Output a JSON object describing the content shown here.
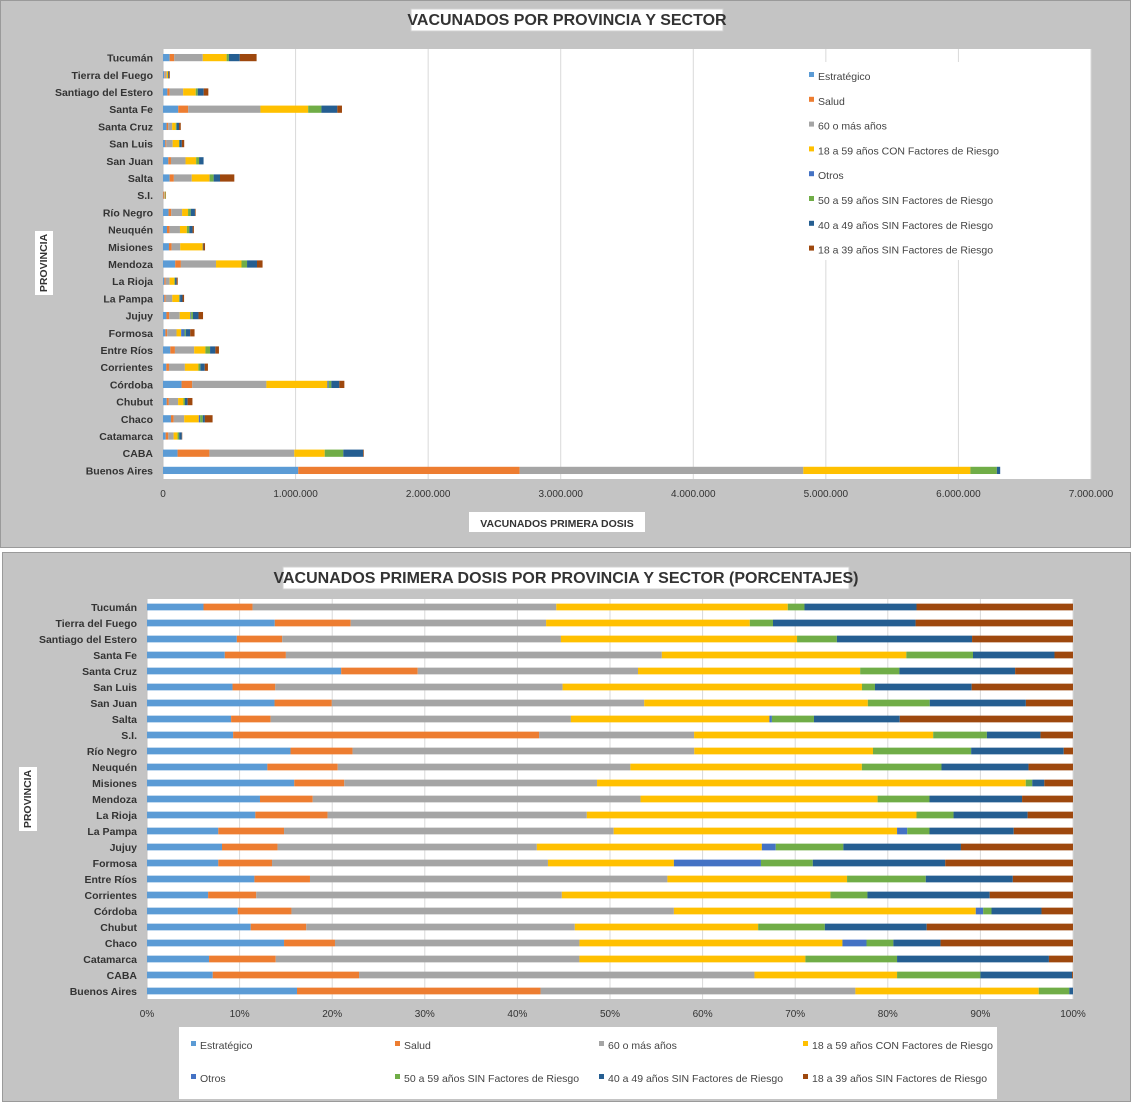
{
  "chart_data": [
    {
      "type": "bar",
      "orientation": "horizontal",
      "stacked": true,
      "title": "VACUNADOS POR PROVINCIA Y SECTOR",
      "xlabel": "VACUNADOS PRIMERA  DOSIS",
      "ylabel": "PROVINCIA",
      "xlim": [
        0,
        7000000
      ],
      "xticks": [
        "0",
        "1.000.000",
        "2.000.000",
        "3.000.000",
        "4.000.000",
        "5.000.000",
        "6.000.000",
        "7.000.000"
      ],
      "grid": true,
      "legend_position": "top-right",
      "categories": [
        "Buenos Aires",
        "CABA",
        "Catamarca",
        "Chaco",
        "Chubut",
        "Córdoba",
        "Corrientes",
        "Entre Ríos",
        "Formosa",
        "Jujuy",
        "La Pampa",
        "La Rioja",
        "Mendoza",
        "Misiones",
        "Neuquén",
        "Río Negro",
        "S.I.",
        "Salta",
        "San Juan",
        "San Luis",
        "Santa Cruz",
        "Santa Fe",
        "Santiago del Estero",
        "Tierra del Fuego",
        "Tucumán"
      ],
      "series": [
        {
          "name": "Estratégico",
          "values": [
            1020000,
            110000,
            20000,
            60000,
            28000,
            140000,
            25000,
            55000,
            18000,
            26000,
            10000,
            10000,
            92000,
            45000,
            30000,
            42000,
            2000,
            50000,
            40000,
            17000,
            27000,
            115000,
            33000,
            9000,
            50000
          ]
        },
        {
          "name": "Salud",
          "values": [
            1670000,
            240000,
            20000,
            20000,
            16000,
            80000,
            20000,
            35000,
            14000,
            20000,
            10000,
            10000,
            43000,
            20000,
            20000,
            20000,
            6000,
            32000,
            20000,
            8000,
            12000,
            75000,
            17000,
            5000,
            35000
          ]
        },
        {
          "name": "60 o más años",
          "values": [
            2140000,
            640000,
            40000,
            80000,
            70000,
            560000,
            120000,
            145000,
            70000,
            80000,
            50000,
            30000,
            265000,
            65000,
            78000,
            82000,
            5000,
            135000,
            110000,
            48000,
            30000,
            545000,
            102000,
            14000,
            215000
          ]
        },
        {
          "name": "18 a 59 años CON Factores de Riesgo",
          "values": [
            1260000,
            230000,
            30000,
            110000,
            40000,
            460000,
            102000,
            85000,
            35000,
            80000,
            52000,
            36000,
            192000,
            170000,
            52000,
            45000,
            5000,
            135000,
            80000,
            48000,
            27000,
            360000,
            95000,
            10000,
            180000
          ]
        },
        {
          "name": "Otros",
          "values": [
            0,
            0,
            0,
            10000,
            0,
            10000,
            0,
            0,
            25000,
            6000,
            2000,
            0,
            0,
            0,
            0,
            0,
            0,
            2000,
            0,
            0,
            0,
            0,
            0,
            0,
            0
          ]
        },
        {
          "name": "50 a 59 años SIN Factores de Riesgo",
          "values": [
            200000,
            140000,
            12000,
            20000,
            12000,
            20000,
            15000,
            35000,
            10000,
            14000,
            5000,
            5000,
            42000,
            0,
            18000,
            20000,
            1000,
            28000,
            22000,
            4000,
            7000,
            100000,
            15000,
            1000,
            17000
          ]
        },
        {
          "name": "40 a 49 años SIN Factores de Riesgo",
          "values": [
            25000,
            150000,
            20000,
            16000,
            20000,
            60000,
            33000,
            40000,
            33000,
            42000,
            18000,
            12000,
            75000,
            5000,
            25000,
            32000,
            1000,
            48000,
            34000,
            17000,
            18000,
            120000,
            45000,
            6000,
            82000
          ]
        },
        {
          "name": "18 a 39 años SIN Factores de Riesgo",
          "values": [
            0,
            5000,
            3000,
            58000,
            36000,
            38000,
            24000,
            27000,
            33000,
            34000,
            12000,
            8000,
            42000,
            12000,
            10000,
            5000,
            1000,
            108000,
            0,
            18000,
            13000,
            35000,
            35000,
            6000,
            127000
          ]
        }
      ]
    },
    {
      "type": "bar",
      "orientation": "horizontal",
      "stacked": true,
      "normalized": true,
      "title": "VACUNADOS PRIMERA DOSIS POR PROVINCIA Y SECTOR (PORCENTAJES)",
      "xlabel": "",
      "ylabel": "PROVINCIA",
      "xlim": [
        0,
        100
      ],
      "xticks": [
        "0%",
        "10%",
        "20%",
        "30%",
        "40%",
        "50%",
        "60%",
        "70%",
        "80%",
        "90%",
        "100%"
      ],
      "grid": true,
      "legend_position": "bottom",
      "categories": [
        "Buenos Aires",
        "CABA",
        "Catamarca",
        "Chaco",
        "Chubut",
        "Córdoba",
        "Corrientes",
        "Entre Ríos",
        "Formosa",
        "Jujuy",
        "La Pampa",
        "La Rioja",
        "Mendoza",
        "Misiones",
        "Neuquén",
        "Río Negro",
        "S.I.",
        "Salta",
        "San Juan",
        "San Luis",
        "Santa Cruz",
        "Santa Fe",
        "Santiago del Estero",
        "Tierra del Fuego",
        "Tucumán"
      ],
      "series": [
        {
          "name": "Estratégico",
          "values": [
            16.2,
            7.1,
            6.7,
            14.8,
            11.2,
            9.8,
            6.6,
            11.6,
            7.7,
            8.1,
            7.7,
            11.7,
            12.2,
            15.9,
            13.0,
            15.5,
            8.5,
            10.0,
            13.8,
            9.2,
            20.8,
            8.4,
            9.7,
            13.8,
            6.1
          ]
        },
        {
          "name": "Salud",
          "values": [
            26.3,
            15.8,
            7.2,
            5.5,
            6.0,
            5.8,
            5.2,
            6.0,
            5.8,
            6.0,
            7.1,
            7.8,
            5.7,
            5.4,
            7.6,
            6.7,
            30.2,
            4.7,
            6.2,
            4.6,
            8.2,
            6.6,
            4.9,
            8.2,
            5.3
          ]
        },
        {
          "name": "60 o más años",
          "values": [
            34.0,
            42.7,
            32.8,
            26.4,
            29.0,
            41.3,
            33.0,
            38.6,
            29.8,
            28.0,
            35.6,
            28.0,
            35.4,
            27.3,
            31.6,
            36.9,
            15.3,
            35.7,
            33.8,
            30.9,
            23.6,
            40.6,
            30.1,
            21.1,
            32.8
          ]
        },
        {
          "name": "18 a 59 años CON Factores de Riesgo",
          "values": [
            19.8,
            15.4,
            24.4,
            28.4,
            19.8,
            32.6,
            29.0,
            19.4,
            13.6,
            24.3,
            30.6,
            35.6,
            25.6,
            46.3,
            25.0,
            19.3,
            23.6,
            23.6,
            24.2,
            32.2,
            23.8,
            26.4,
            25.5,
            22.0,
            25.0
          ]
        },
        {
          "name": "Otros",
          "values": [
            0,
            0,
            0,
            2.6,
            0,
            0.8,
            0,
            0,
            9.4,
            1.5,
            1.1,
            0,
            0,
            0,
            0,
            0,
            0,
            0.3,
            0,
            0,
            0,
            0,
            0,
            0,
            0
          ]
        },
        {
          "name": "50 a 59 años SIN Factores de Riesgo",
          "values": [
            3.3,
            9.0,
            9.9,
            2.9,
            7.2,
            0.9,
            4.0,
            8.5,
            5.6,
            7.3,
            2.4,
            4.0,
            5.6,
            0.7,
            8.6,
            10.6,
            5.3,
            5.0,
            6.7,
            1.4,
            4.2,
            7.2,
            4.3,
            2.5,
            1.8
          ]
        },
        {
          "name": "40 a 49 años SIN Factores de Riesgo",
          "values": [
            0.4,
            9.9,
            16.4,
            5.1,
            11.0,
            5.4,
            13.2,
            9.4,
            14.3,
            12.7,
            9.1,
            8.0,
            10.0,
            1.3,
            9.4,
            10.0,
            5.3,
            10.2,
            10.4,
            10.4,
            12.4,
            8.8,
            14.6,
            15.4,
            12.1
          ]
        },
        {
          "name": "18 a 39 años SIN Factores de Riesgo",
          "values": [
            0.0,
            0.1,
            2.6,
            14.3,
            15.8,
            3.4,
            9.0,
            6.5,
            13.8,
            12.1,
            6.4,
            4.9,
            5.5,
            3.1,
            4.8,
            1.0,
            3.2,
            20.6,
            5.1,
            10.9,
            6.2,
            2.0,
            10.9,
            17.0,
            16.9
          ]
        }
      ]
    }
  ],
  "colors": {
    "Estratégico": "#5b9bd5",
    "Salud": "#ed7d31",
    "60 o más años": "#a5a5a5",
    "18 a 59 años CON Factores de Riesgo": "#ffc000",
    "Otros": "#4472c4",
    "50 a 59 años SIN Factores de Riesgo": "#70ad47",
    "40 a 49 años SIN Factores de Riesgo": "#255e91",
    "18 a 39 años SIN Factores de Riesgo": "#9e480e"
  }
}
